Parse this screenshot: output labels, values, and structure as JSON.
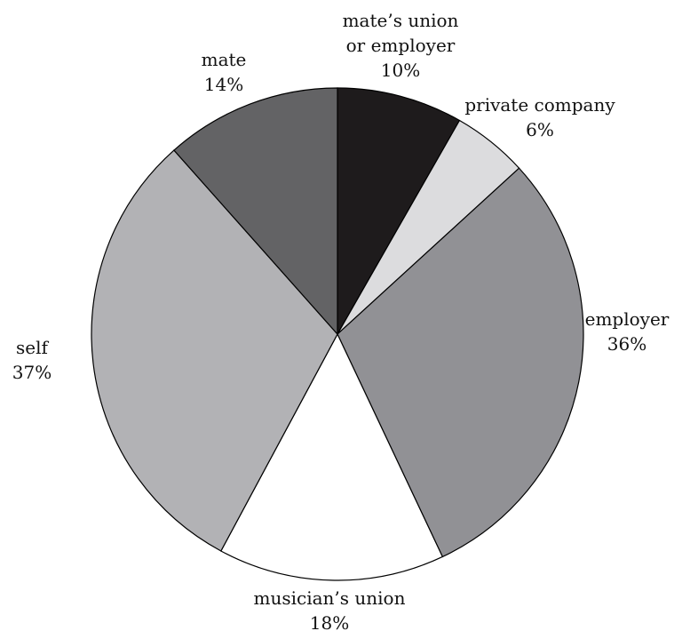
{
  "chart_data": {
    "type": "pie",
    "title": "",
    "slices": [
      {
        "label_lines": [
          "mate’s union",
          "or employer"
        ],
        "percent_label": "10%",
        "value": 10,
        "color": "#1e1b1c"
      },
      {
        "label_lines": [
          "private company"
        ],
        "percent_label": "6%",
        "value": 6,
        "color": "#dcdcde"
      },
      {
        "label_lines": [
          "employer"
        ],
        "percent_label": "36%",
        "value": 36,
        "color": "#919195"
      },
      {
        "label_lines": [
          "musician’s union"
        ],
        "percent_label": "18%",
        "value": 18,
        "color": "#ffffff"
      },
      {
        "label_lines": [
          "self"
        ],
        "percent_label": "37%",
        "value": 37,
        "color": "#b2b2b5"
      },
      {
        "label_lines": [
          "mate"
        ],
        "percent_label": "14%",
        "value": 14,
        "color": "#636365"
      }
    ],
    "start_angle": "12 o'clock",
    "direction": "clockwise",
    "legend": "none"
  }
}
